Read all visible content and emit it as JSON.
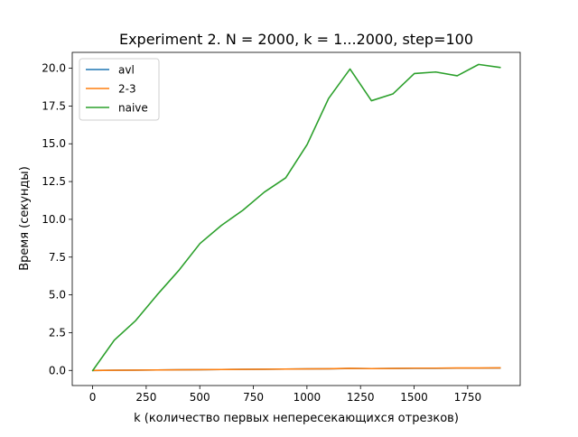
{
  "chart_data": {
    "type": "line",
    "title": "Experiment 2. N = 2000, k = 1...2000, step=100",
    "xlabel": "k (количество первых непересекающихся отрезков)",
    "ylabel": "Время (секунды)",
    "xlim": [
      -95,
      1995
    ],
    "ylim": [
      -1.0,
      21.05
    ],
    "xticks": [
      0,
      250,
      500,
      750,
      1000,
      1250,
      1500,
      1750
    ],
    "xtick_labels": [
      "0",
      "250",
      "500",
      "750",
      "1000",
      "1250",
      "1500",
      "1750"
    ],
    "yticks": [
      0.0,
      2.5,
      5.0,
      7.5,
      10.0,
      12.5,
      15.0,
      17.5,
      20.0
    ],
    "ytick_labels": [
      "0.0",
      "2.5",
      "5.0",
      "7.5",
      "10.0",
      "12.5",
      "15.0",
      "17.5",
      "20.0"
    ],
    "grid": false,
    "legend_position": "upper-left",
    "x": [
      1,
      101,
      201,
      301,
      401,
      501,
      601,
      701,
      801,
      901,
      1001,
      1101,
      1201,
      1301,
      1401,
      1501,
      1601,
      1701,
      1801,
      1901
    ],
    "series": [
      {
        "name": "avl",
        "color": "#1f77b4",
        "values": [
          0.0,
          0.01,
          0.02,
          0.03,
          0.04,
          0.05,
          0.06,
          0.07,
          0.08,
          0.09,
          0.1,
          0.11,
          0.13,
          0.12,
          0.13,
          0.14,
          0.14,
          0.15,
          0.15,
          0.16
        ]
      },
      {
        "name": "2-3",
        "color": "#ff7f0e",
        "values": [
          0.0,
          0.01,
          0.02,
          0.03,
          0.04,
          0.05,
          0.06,
          0.07,
          0.08,
          0.09,
          0.1,
          0.11,
          0.14,
          0.12,
          0.13,
          0.15,
          0.15,
          0.16,
          0.16,
          0.17
        ]
      },
      {
        "name": "naive",
        "color": "#2ca02c",
        "values": [
          0.0,
          2.0,
          3.3,
          5.0,
          6.6,
          8.4,
          9.6,
          10.6,
          11.8,
          12.75,
          14.95,
          18.0,
          19.95,
          17.85,
          18.3,
          19.65,
          19.75,
          19.5,
          20.25,
          20.05
        ]
      }
    ]
  }
}
